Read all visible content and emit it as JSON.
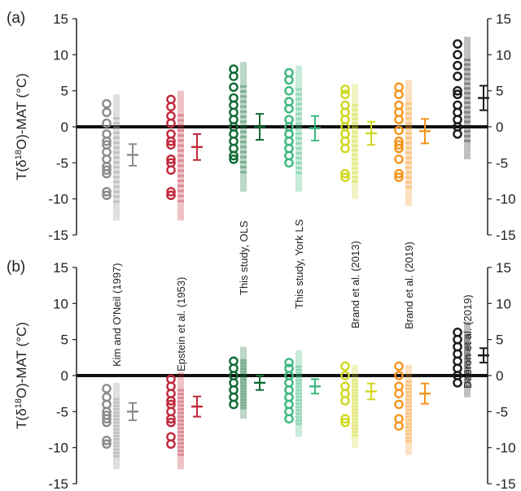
{
  "chart_data": {
    "type": "scatter",
    "ylabel": "T(δ18O)-MAT (°C)",
    "ylim": [
      -15,
      15
    ],
    "yticks": [
      15,
      10,
      5,
      0,
      -5,
      -10,
      -15
    ],
    "categories": [
      "Kim and O'Neil (1997)",
      "Epstein et al. (1953)",
      "This study, OLS",
      "This study, York LS",
      "Brand et al. (2013)",
      "Brand et al. (2019)",
      "Daëron et al. (2019)"
    ],
    "colors": [
      "#8c8c8c",
      "#c0283a",
      "#0f6b35",
      "#3bb77e",
      "#cfd81f",
      "#f7941d",
      "#1a1a1a"
    ],
    "panels": [
      {
        "label": "(a)",
        "series": [
          {
            "points": [
              3.2,
              2.0,
              0.5,
              -1.0,
              -2.0,
              -2.5,
              -3.5,
              -4.5,
              -5.5,
              -6.0,
              -6.5,
              -9.0,
              -9.5
            ],
            "mean": -3.9,
            "err": 1.5,
            "band": [
              -13,
              4.5
            ]
          },
          {
            "points": [
              3.8,
              2.8,
              1.5,
              0.5,
              -1.0,
              -2.0,
              -2.5,
              -4.5,
              -5.0,
              -6.0,
              -9.0,
              -9.5
            ],
            "mean": -2.8,
            "err": 1.8,
            "band": [
              -13,
              5
            ]
          },
          {
            "points": [
              8.0,
              7.0,
              5.5,
              4.0,
              3.0,
              2.0,
              1.0,
              0.0,
              -1.0,
              -2.0,
              -3.0,
              -4.0,
              -4.5
            ],
            "mean": 0.0,
            "err": 1.8,
            "band": [
              -9,
              9
            ]
          },
          {
            "points": [
              7.5,
              6.5,
              5.0,
              3.5,
              2.5,
              1.0,
              0.0,
              -1.0,
              -2.0,
              -3.0,
              -4.0,
              -5.0
            ],
            "mean": -0.2,
            "err": 1.7,
            "band": [
              -9,
              8.5
            ]
          },
          {
            "points": [
              5.2,
              4.5,
              3.0,
              2.0,
              1.0,
              0.0,
              -1.0,
              -2.0,
              -3.0,
              -6.5,
              -7.0
            ],
            "mean": -0.9,
            "err": 1.6,
            "band": [
              -10,
              6
            ]
          },
          {
            "points": [
              5.5,
              4.5,
              3.0,
              2.0,
              1.0,
              -0.5,
              -2.0,
              -2.5,
              -3.0,
              -4.5,
              -6.5,
              -7.0
            ],
            "mean": -0.6,
            "err": 1.7,
            "band": [
              -11,
              6.5
            ]
          },
          {
            "points": [
              11.5,
              10.0,
              8.5,
              7.0,
              5.0,
              4.5,
              3.0,
              2.0,
              1.0,
              0.0,
              -1.0
            ],
            "mean": 4.0,
            "err": 1.7,
            "band": [
              -4.5,
              12.5
            ]
          }
        ]
      },
      {
        "label": "(b)",
        "series": [
          {
            "points": [
              -1.8,
              -3.0,
              -4.0,
              -5.0,
              -5.5,
              -6.0,
              -6.5,
              -9.0,
              -9.5
            ],
            "mean": -5.0,
            "err": 1.2,
            "band": [
              -13,
              -1
            ]
          },
          {
            "points": [
              -0.5,
              -1.5,
              -2.5,
              -3.5,
              -4.0,
              -5.0,
              -6.0,
              -6.5,
              -8.5,
              -9.5
            ],
            "mean": -4.3,
            "err": 1.4,
            "band": [
              -13,
              0.5
            ]
          },
          {
            "points": [
              2.0,
              1.0,
              0.0,
              -1.0,
              -2.0,
              -3.0,
              -4.0
            ],
            "mean": -1.0,
            "err": 1.0,
            "band": [
              -6,
              4
            ]
          },
          {
            "points": [
              1.8,
              1.0,
              0.0,
              -1.0,
              -2.0,
              -3.0,
              -4.0,
              -5.0,
              -6.0
            ],
            "mean": -1.5,
            "err": 1.0,
            "band": [
              -8.5,
              3.5
            ]
          },
          {
            "points": [
              1.3,
              0.0,
              -1.5,
              -2.5,
              -3.5,
              -6.0,
              -6.5
            ],
            "mean": -2.2,
            "err": 1.1,
            "band": [
              -10,
              1.5
            ]
          },
          {
            "points": [
              1.3,
              0.0,
              -1.5,
              -2.5,
              -4.0,
              -6.0,
              -7.0
            ],
            "mean": -2.5,
            "err": 1.4,
            "band": [
              -11,
              1.5
            ]
          },
          {
            "points": [
              6.0,
              5.0,
              4.0,
              3.0,
              2.0,
              1.0,
              0.0,
              -1.0
            ],
            "mean": 2.8,
            "err": 1.0,
            "band": [
              -3,
              7.5
            ]
          }
        ]
      }
    ]
  }
}
